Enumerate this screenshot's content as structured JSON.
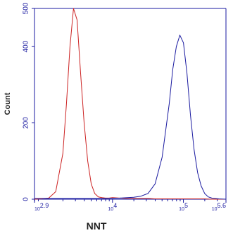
{
  "chart_data": {
    "type": "line",
    "xlabel": "NNT",
    "ylabel": "Count",
    "x_scale": "log",
    "xlim": [
      794,
      398107
    ],
    "ylim": [
      0,
      500
    ],
    "y_ticks": [
      0,
      200,
      400,
      500
    ],
    "y_tick_labels": [
      "0",
      "200",
      "400",
      "500"
    ],
    "x_ticks": [
      {
        "base": "10",
        "exp": "2.9",
        "value": 794
      },
      {
        "base": "10",
        "exp": "4",
        "value": 10000
      },
      {
        "base": "10",
        "exp": "5",
        "value": 100000
      },
      {
        "base": "10",
        "exp": "5.6",
        "value": 398107
      }
    ],
    "series": [
      {
        "color": "#cc2222",
        "x": [
          794,
          1000,
          1259,
          1585,
          1995,
          2239,
          2512,
          2818,
          3162,
          3548,
          3981,
          4467,
          5012,
          5623,
          6310,
          7079,
          7943,
          8913,
          10000,
          12589,
          15849,
          19953,
          25119,
          31623,
          39811,
          50119,
          63096,
          79433,
          100000,
          125893,
          158489,
          199526,
          251189,
          316228,
          398107
        ],
        "y": [
          0,
          1,
          3,
          20,
          120,
          250,
          400,
          500,
          470,
          330,
          200,
          100,
          40,
          15,
          6,
          4,
          3,
          3,
          4,
          3,
          2,
          2,
          2,
          2,
          1,
          1,
          1,
          1,
          1,
          1,
          1,
          1,
          0,
          0,
          0
        ]
      },
      {
        "color": "#1a1aa0",
        "x": [
          794,
          1259,
          1995,
          3162,
          5012,
          7943,
          12589,
          19953,
          25119,
          31623,
          39811,
          50119,
          63096,
          70795,
          79433,
          89125,
          100000,
          112202,
          125893,
          141254,
          158489,
          177828,
          199526,
          223872,
          251189,
          316228,
          398107
        ],
        "y": [
          2,
          2,
          2,
          2,
          2,
          2,
          3,
          5,
          8,
          15,
          40,
          110,
          250,
          340,
          400,
          430,
          410,
          330,
          220,
          130,
          70,
          35,
          15,
          6,
          3,
          1,
          0
        ]
      }
    ]
  }
}
